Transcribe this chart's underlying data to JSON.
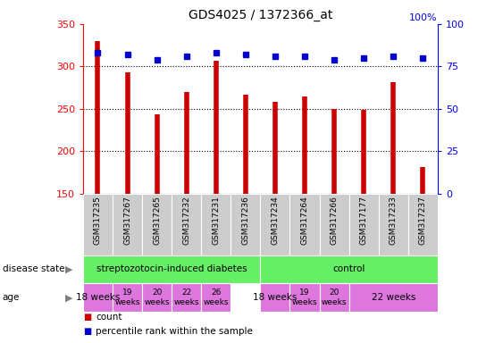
{
  "title": "GDS4025 / 1372366_at",
  "samples": [
    "GSM317235",
    "GSM317267",
    "GSM317265",
    "GSM317232",
    "GSM317231",
    "GSM317236",
    "GSM317234",
    "GSM317264",
    "GSM317266",
    "GSM317177",
    "GSM317233",
    "GSM317237"
  ],
  "counts": [
    330,
    293,
    244,
    270,
    307,
    267,
    258,
    265,
    250,
    249,
    281,
    181
  ],
  "percentiles": [
    83,
    82,
    79,
    81,
    83,
    82,
    81,
    81,
    79,
    80,
    81,
    80
  ],
  "ylim": [
    150,
    350
  ],
  "yticks": [
    150,
    200,
    250,
    300,
    350
  ],
  "y2lim": [
    0,
    100
  ],
  "y2ticks": [
    0,
    25,
    50,
    75,
    100
  ],
  "bar_color": "#cc0000",
  "dot_color": "#0000cc",
  "disease_state_label": "disease state",
  "age_label": "age",
  "ds_groups": [
    {
      "label": "streptozotocin-induced diabetes",
      "start": 0,
      "end": 6
    },
    {
      "label": "control",
      "start": 6,
      "end": 12
    }
  ],
  "age_groups": [
    {
      "label": "18 weeks",
      "start": 0,
      "end": 1,
      "small": false
    },
    {
      "label": "19\nweeks",
      "start": 1,
      "end": 2,
      "small": true
    },
    {
      "label": "20\nweeks",
      "start": 2,
      "end": 3,
      "small": true
    },
    {
      "label": "22\nweeks",
      "start": 3,
      "end": 4,
      "small": true
    },
    {
      "label": "26\nweeks",
      "start": 4,
      "end": 5,
      "small": true
    },
    {
      "label": "18 weeks",
      "start": 6,
      "end": 7,
      "small": false
    },
    {
      "label": "19\nweeks",
      "start": 7,
      "end": 8,
      "small": true
    },
    {
      "label": "20\nweeks",
      "start": 8,
      "end": 9,
      "small": true
    },
    {
      "label": "22 weeks",
      "start": 9,
      "end": 12,
      "small": false
    }
  ],
  "legend_count_label": "count",
  "legend_percentile_label": "percentile rank within the sample",
  "ds_color": "#66ee66",
  "age_color": "#dd77dd",
  "sample_bg_color": "#cccccc"
}
